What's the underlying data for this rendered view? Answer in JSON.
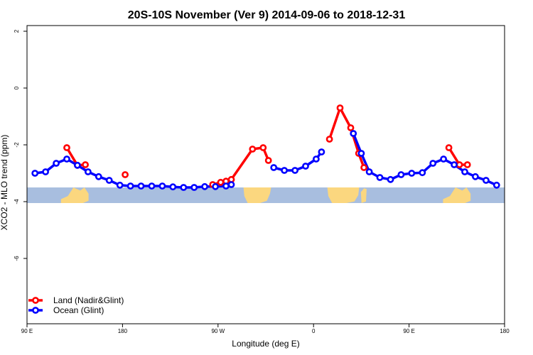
{
  "chart_data": {
    "type": "line",
    "title": "20S-10S November (Ver 9)   2014-09-06 to 2018-12-31",
    "xlabel": "Longitude (deg E)",
    "ylabel": "XCO2 - MLO trend (ppm)",
    "xlim": [
      90,
      540
    ],
    "ylim": [
      -8.3,
      2.2
    ],
    "x_ticks": [
      {
        "value": 90,
        "label": "90 E"
      },
      {
        "value": 180,
        "label": "180"
      },
      {
        "value": 270,
        "label": "90 W"
      },
      {
        "value": 360,
        "label": "0"
      },
      {
        "value": 450,
        "label": "90 E"
      },
      {
        "value": 540,
        "label": "180"
      }
    ],
    "y_ticks": [
      {
        "value": 2,
        "label": "2"
      },
      {
        "value": 0,
        "label": "0"
      },
      {
        "value": -2,
        "label": "-2"
      },
      {
        "value": -4,
        "label": "-4"
      },
      {
        "value": -6,
        "label": "-6"
      }
    ],
    "grid": false,
    "legend_position": "bottom-left",
    "map_band": {
      "y_top": -3.5,
      "y_bottom": -4.05,
      "ocean_color": "#a8bedf",
      "land_color": "#fbd77f"
    },
    "series": [
      {
        "name": "Land (Nadir&Glint)",
        "color": "#ff0000",
        "points": [
          [
            127.5,
            -2.1
          ],
          [
            137.5,
            -2.72
          ],
          [
            145,
            -2.7
          ],
          [
            182.5,
            -3.05
          ],
          [
            265,
            -3.4
          ],
          [
            272.5,
            -3.32
          ],
          [
            277.5,
            -3.28
          ],
          [
            282.5,
            -3.22
          ],
          [
            302.5,
            -2.15
          ],
          [
            312.5,
            -2.1
          ],
          [
            317.5,
            -2.55
          ],
          [
            375,
            -1.8
          ],
          [
            385,
            -0.7
          ],
          [
            395,
            -1.4
          ],
          [
            402.5,
            -2.3
          ],
          [
            407.5,
            -2.8
          ],
          [
            487.5,
            -2.1
          ],
          [
            497.5,
            -2.7
          ],
          [
            505,
            -2.7
          ]
        ],
        "segments": [
          [
            0,
            2
          ],
          [
            3,
            3
          ],
          [
            4,
            10
          ],
          [
            11,
            15
          ],
          [
            16,
            18
          ]
        ]
      },
      {
        "name": "Ocean (Glint)",
        "color": "#0000ff",
        "points": [
          [
            97.5,
            -3.0
          ],
          [
            107.5,
            -2.95
          ],
          [
            117.5,
            -2.65
          ],
          [
            127.5,
            -2.5
          ],
          [
            137.5,
            -2.72
          ],
          [
            147.5,
            -2.95
          ],
          [
            157.5,
            -3.12
          ],
          [
            167.5,
            -3.25
          ],
          [
            177.5,
            -3.42
          ],
          [
            187.5,
            -3.45
          ],
          [
            197.5,
            -3.45
          ],
          [
            207.5,
            -3.45
          ],
          [
            217.5,
            -3.45
          ],
          [
            227.5,
            -3.48
          ],
          [
            237.5,
            -3.5
          ],
          [
            247.5,
            -3.5
          ],
          [
            257.5,
            -3.47
          ],
          [
            267.5,
            -3.47
          ],
          [
            277.5,
            -3.45
          ],
          [
            282.5,
            -3.4
          ],
          [
            322.5,
            -2.8
          ],
          [
            332.5,
            -2.9
          ],
          [
            342.5,
            -2.9
          ],
          [
            352.5,
            -2.75
          ],
          [
            362.5,
            -2.5
          ],
          [
            367.5,
            -2.25
          ],
          [
            397.5,
            -1.6
          ],
          [
            405,
            -2.3
          ],
          [
            412.5,
            -2.95
          ],
          [
            422.5,
            -3.15
          ],
          [
            432.5,
            -3.22
          ],
          [
            442.5,
            -3.05
          ],
          [
            452.5,
            -3.0
          ],
          [
            462.5,
            -2.98
          ],
          [
            472.5,
            -2.65
          ],
          [
            482.5,
            -2.5
          ],
          [
            492.5,
            -2.7
          ],
          [
            502.5,
            -2.95
          ],
          [
            512.5,
            -3.12
          ],
          [
            522.5,
            -3.25
          ],
          [
            532.5,
            -3.42
          ]
        ],
        "segments": [
          [
            0,
            19
          ],
          [
            20,
            25
          ],
          [
            26,
            40
          ]
        ]
      }
    ]
  }
}
